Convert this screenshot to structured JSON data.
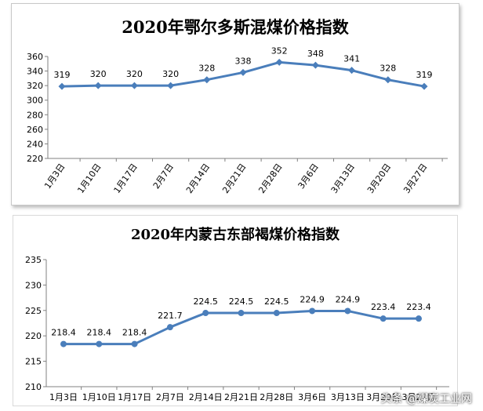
{
  "chart_data": [
    {
      "type": "line",
      "title": "2020年鄂尔多斯混煤价格指数",
      "categories": [
        "1月3日",
        "1月10日",
        "1月17日",
        "2月7日",
        "2月14日",
        "2月21日",
        "2月28日",
        "3月6日",
        "3月13日",
        "3月20日",
        "3月27日"
      ],
      "series": [
        {
          "values": [
            319,
            320,
            320,
            320,
            328,
            338,
            352,
            348,
            341,
            328,
            319
          ]
        }
      ],
      "value_labels": [
        "319",
        "320",
        "320",
        "320",
        "328",
        "338",
        "352",
        "348",
        "341",
        "328",
        "319"
      ],
      "ylim": [
        220,
        360
      ],
      "yticks": [
        220,
        240,
        260,
        280,
        300,
        320,
        340,
        360
      ],
      "marker": "diamond",
      "line_color": "#4a7ebb",
      "grid": false,
      "xlabel_rotation": "rotated"
    },
    {
      "type": "line",
      "title": "2020年内蒙古东部褐煤价格指数",
      "categories": [
        "1月3日",
        "1月10日",
        "1月17日",
        "2月7日",
        "2月14日",
        "2月21日",
        "2月28日",
        "3月6日",
        "3月13日",
        "3月20日",
        "3月27日"
      ],
      "series": [
        {
          "values": [
            218.4,
            218.4,
            218.4,
            221.7,
            224.5,
            224.5,
            224.5,
            224.9,
            224.9,
            223.4,
            223.4
          ]
        }
      ],
      "value_labels": [
        "218.4",
        "218.4",
        "218.4",
        "221.7",
        "224.5",
        "224.5",
        "224.5",
        "224.9",
        "224.9",
        "223.4",
        "223.4"
      ],
      "ylim": [
        210,
        235
      ],
      "yticks": [
        210,
        215,
        220,
        225,
        230,
        235
      ],
      "marker": "circle",
      "line_color": "#4a7ebb",
      "grid": false
    }
  ],
  "watermark": "头条 @煤炭工业网"
}
